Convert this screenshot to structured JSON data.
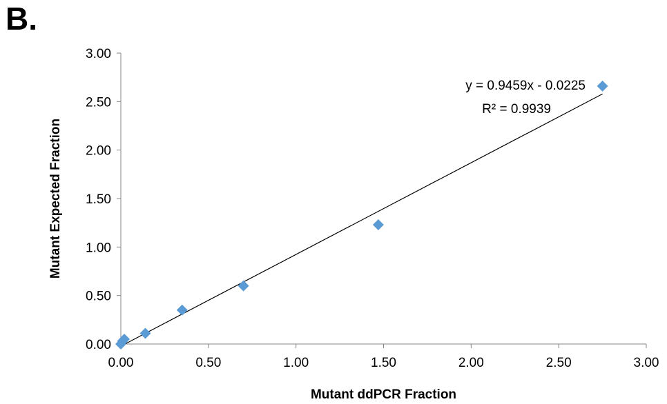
{
  "panel_label": "B.",
  "chart_data": {
    "type": "scatter",
    "xlabel": "Mutant ddPCR Fraction",
    "ylabel": "Mutant Expected Fraction",
    "xlim": [
      0,
      3
    ],
    "ylim": [
      0,
      3
    ],
    "x_ticks": [
      "0.00",
      "0.50",
      "1.00",
      "1.50",
      "2.00",
      "2.50",
      "3.00"
    ],
    "y_ticks": [
      "0.00",
      "0.50",
      "1.00",
      "1.50",
      "2.00",
      "2.50",
      "3.00"
    ],
    "grid": false,
    "marker": "diamond",
    "marker_color": "#5B9BD5",
    "points": [
      {
        "x": 0.0,
        "y": 0.0
      },
      {
        "x": 0.01,
        "y": 0.03
      },
      {
        "x": 0.02,
        "y": 0.05
      },
      {
        "x": 0.14,
        "y": 0.11
      },
      {
        "x": 0.35,
        "y": 0.35
      },
      {
        "x": 0.7,
        "y": 0.6
      },
      {
        "x": 1.47,
        "y": 1.23
      },
      {
        "x": 2.75,
        "y": 2.66
      }
    ],
    "trendline": {
      "slope": 0.9459,
      "intercept": -0.0225,
      "x_range": [
        0.02,
        2.75
      ],
      "equation_text": "y = 0.9459x - 0.0225",
      "r2_text": "R² = 0.9939"
    }
  }
}
